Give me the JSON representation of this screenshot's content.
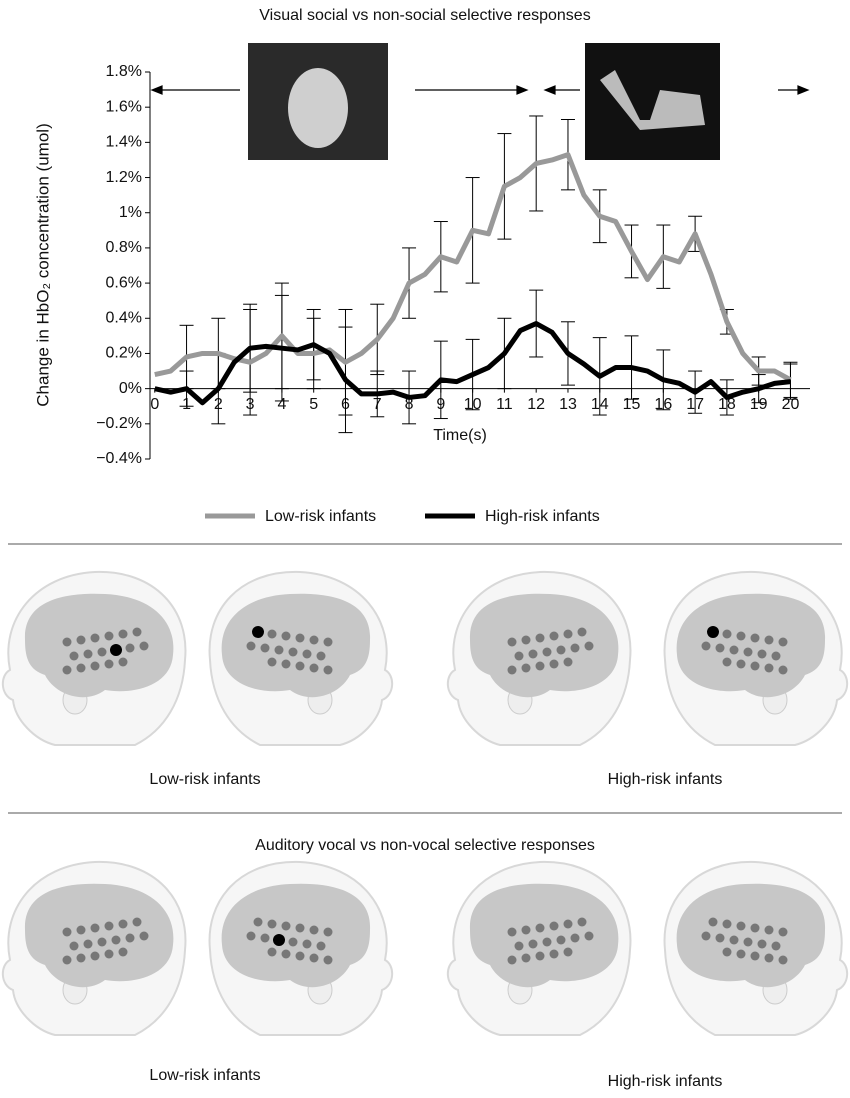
{
  "chart_data": {
    "type": "line",
    "title": "Visual social vs non-social selective responses",
    "y_label": "Change in HbO₂ concentration (umol)",
    "x_label": "Time(s)",
    "x": [
      0,
      0.5,
      1,
      1.5,
      2,
      2.5,
      3,
      3.5,
      4,
      4.5,
      5,
      5.5,
      6,
      6.5,
      7,
      7.5,
      8,
      8.5,
      9,
      9.5,
      10,
      10.5,
      11,
      11.5,
      12,
      12.5,
      13,
      13.5,
      14,
      14.5,
      15,
      15.5,
      16,
      16.5,
      17,
      17.5,
      18,
      18.5,
      19,
      19.5,
      20
    ],
    "series": [
      {
        "name": "Low-risk infants",
        "color": "#999999",
        "values": [
          0.08,
          0.1,
          0.18,
          0.2,
          0.2,
          0.17,
          0.15,
          0.2,
          0.3,
          0.2,
          0.2,
          0.22,
          0.15,
          0.2,
          0.28,
          0.4,
          0.6,
          0.65,
          0.75,
          0.72,
          0.9,
          0.88,
          1.15,
          1.2,
          1.28,
          1.3,
          1.33,
          1.1,
          0.98,
          0.95,
          0.78,
          0.62,
          0.75,
          0.72,
          0.88,
          0.65,
          0.38,
          0.2,
          0.1,
          0.1,
          0.05
        ],
        "errors": [
          null,
          null,
          0.18,
          null,
          0.2,
          null,
          0.3,
          null,
          0.3,
          null,
          0.2,
          null,
          0.3,
          null,
          0.2,
          null,
          0.2,
          null,
          0.2,
          null,
          0.3,
          null,
          0.3,
          null,
          0.27,
          null,
          0.2,
          null,
          0.15,
          null,
          0.15,
          null,
          0.18,
          null,
          0.1,
          null,
          0.07,
          null,
          0.08,
          null,
          0.1
        ]
      },
      {
        "name": "High-risk infants",
        "color": "#000000",
        "values": [
          0,
          -0.02,
          0,
          -0.08,
          0,
          0.15,
          0.23,
          0.24,
          0.23,
          0.22,
          0.25,
          0.2,
          0.05,
          -0.03,
          -0.03,
          -0.02,
          -0.05,
          -0.04,
          0.05,
          0.04,
          0.08,
          0.12,
          0.2,
          0.33,
          0.37,
          0.32,
          0.2,
          0.14,
          0.07,
          0.12,
          0.12,
          0.1,
          0.05,
          0.03,
          -0.02,
          0.04,
          -0.05,
          -0.02,
          0,
          0.03,
          0.04
        ],
        "errors": [
          null,
          null,
          0.1,
          null,
          0.2,
          null,
          0.25,
          null,
          0.3,
          null,
          0.2,
          null,
          0.3,
          null,
          0.13,
          null,
          0.15,
          null,
          0.22,
          null,
          0.2,
          null,
          0.2,
          null,
          0.19,
          null,
          0.18,
          null,
          0.22,
          null,
          0.18,
          null,
          0.17,
          null,
          0.12,
          null,
          0.1,
          null,
          0.08,
          null,
          0.1
        ]
      }
    ],
    "xlim": [
      -0.15,
      20.3
    ],
    "ylim": [
      -0.4,
      1.8
    ],
    "xticks": [
      0,
      1,
      2,
      3,
      4,
      5,
      6,
      7,
      8,
      9,
      10,
      11,
      12,
      13,
      14,
      15,
      16,
      17,
      18,
      19,
      20
    ],
    "yticks": [
      {
        "value": -0.4,
        "label": "−0.4%"
      },
      {
        "value": -0.2,
        "label": "−0.2%"
      },
      {
        "value": 0,
        "label": "0%"
      },
      {
        "value": 0.2,
        "label": "0.2%"
      },
      {
        "value": 0.4,
        "label": "0.4%"
      },
      {
        "value": 0.6,
        "label": "0.6%"
      },
      {
        "value": 0.8,
        "label": "0.8%"
      },
      {
        "value": 1,
        "label": "1%"
      },
      {
        "value": 1.2,
        "label": "1.2%"
      },
      {
        "value": 1.4,
        "label": "1.4%"
      },
      {
        "value": 1.6,
        "label": "1.6%"
      },
      {
        "value": 1.8,
        "label": "1.8%"
      }
    ],
    "legend": "bottom"
  },
  "brain_maps": {
    "visual": {
      "labels": [
        "Low-risk infants",
        "High-risk infants"
      ]
    },
    "auditory": {
      "title": "Auditory vocal vs non-vocal selective responses",
      "labels": [
        "Low-risk infants",
        "High-risk infants"
      ]
    }
  }
}
